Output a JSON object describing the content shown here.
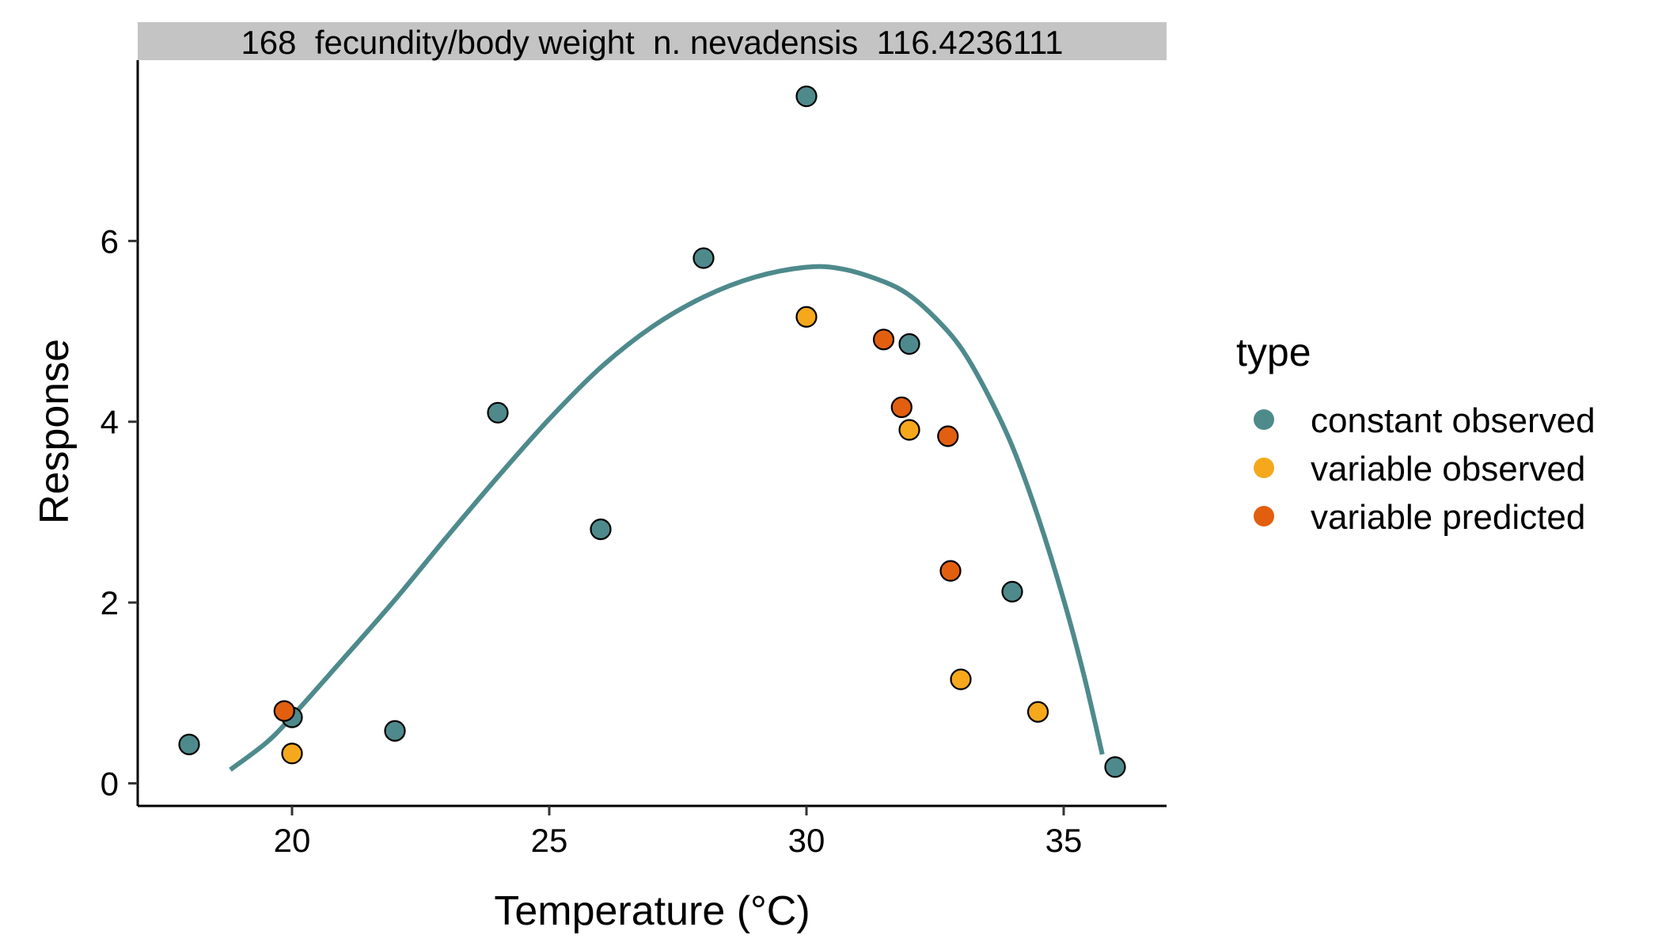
{
  "chart_data": {
    "type": "scatter",
    "title": "168  fecundity/body weight  n. nevadensis  116.4236111",
    "xlabel": "Temperature (°C)",
    "ylabel": "Response",
    "xlim": [
      17.0,
      37.0
    ],
    "ylim": [
      -0.25,
      8.0
    ],
    "x_ticks": [
      20,
      25,
      30,
      35
    ],
    "y_ticks": [
      0,
      2,
      4,
      6
    ],
    "grid": false,
    "legend": {
      "title": "type",
      "placement": "right",
      "entries": [
        {
          "name": "constant observed",
          "color": "#4e8a8c"
        },
        {
          "name": "variable observed",
          "color": "#f6a81c"
        },
        {
          "name": "variable predicted",
          "color": "#e25f0f"
        }
      ]
    },
    "series": [
      {
        "name": "constant observed",
        "color": "#4e8a8c",
        "points": [
          {
            "x": 18,
            "y": 0.43
          },
          {
            "x": 20,
            "y": 0.73
          },
          {
            "x": 22,
            "y": 0.58
          },
          {
            "x": 24,
            "y": 4.1
          },
          {
            "x": 26,
            "y": 2.81
          },
          {
            "x": 28,
            "y": 5.81
          },
          {
            "x": 30,
            "y": 7.6
          },
          {
            "x": 32,
            "y": 4.86
          },
          {
            "x": 34,
            "y": 2.12
          },
          {
            "x": 36,
            "y": 0.18
          }
        ]
      },
      {
        "name": "variable observed",
        "color": "#f6a81c",
        "points": [
          {
            "x": 20.0,
            "y": 0.33
          },
          {
            "x": 30.0,
            "y": 5.16
          },
          {
            "x": 32.0,
            "y": 3.91
          },
          {
            "x": 33.0,
            "y": 1.15
          },
          {
            "x": 34.5,
            "y": 0.79
          }
        ]
      },
      {
        "name": "variable predicted",
        "color": "#e25f0f",
        "points": [
          {
            "x": 19.85,
            "y": 0.8
          },
          {
            "x": 31.5,
            "y": 4.91
          },
          {
            "x": 31.85,
            "y": 4.16
          },
          {
            "x": 32.75,
            "y": 3.84
          },
          {
            "x": 32.8,
            "y": 2.35
          }
        ]
      }
    ],
    "fit_curve": {
      "color": "#4e8a8c",
      "points": [
        [
          18.8,
          0.15
        ],
        [
          19.5,
          0.45
        ],
        [
          20.0,
          0.74
        ],
        [
          21.0,
          1.38
        ],
        [
          22.0,
          2.03
        ],
        [
          23.0,
          2.72
        ],
        [
          24.0,
          3.39
        ],
        [
          25.0,
          4.03
        ],
        [
          26.0,
          4.6
        ],
        [
          27.0,
          5.05
        ],
        [
          28.0,
          5.38
        ],
        [
          29.0,
          5.6
        ],
        [
          30.0,
          5.71
        ],
        [
          30.7,
          5.69
        ],
        [
          31.5,
          5.55
        ],
        [
          32.0,
          5.4
        ],
        [
          32.5,
          5.15
        ],
        [
          33.0,
          4.82
        ],
        [
          33.5,
          4.33
        ],
        [
          34.0,
          3.73
        ],
        [
          34.5,
          2.95
        ],
        [
          35.0,
          2.03
        ],
        [
          35.4,
          1.18
        ],
        [
          35.75,
          0.32
        ]
      ]
    }
  }
}
